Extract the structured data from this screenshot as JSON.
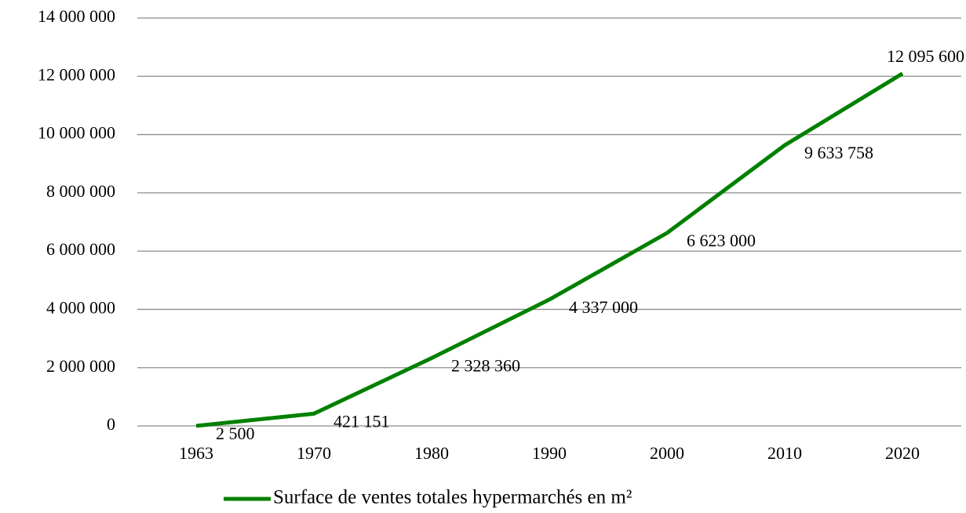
{
  "chart_data": {
    "type": "line",
    "categories": [
      "1963",
      "1970",
      "1980",
      "1990",
      "2000",
      "2010",
      "2020"
    ],
    "series": [
      {
        "name": "Surface de ventes totales hypermarchés en m²",
        "color": "#008000",
        "values": [
          2500,
          421151,
          2328360,
          4337000,
          6623000,
          9633758,
          12095600
        ],
        "value_labels": [
          "2 500",
          "421 151",
          "2 328 360",
          "4 337 000",
          "6 623 000",
          "9 633 758",
          "12 095 600"
        ]
      }
    ],
    "ylim": [
      0,
      14000000
    ],
    "yticks": [
      0,
      {
        "value": 2000000,
        "label": "2 000 000"
      },
      {
        "value": 4000000,
        "label": "4 000 000"
      },
      {
        "value": 6000000,
        "label": "6 000 000"
      },
      {
        "value": 8000000,
        "label": "8 000 000"
      },
      {
        "value": 10000000,
        "label": "10 000 000"
      },
      {
        "value": 12000000,
        "label": "12 000 000"
      },
      {
        "value": 14000000,
        "label": "14 000 000"
      }
    ],
    "grid": true,
    "legend": "bottom"
  }
}
